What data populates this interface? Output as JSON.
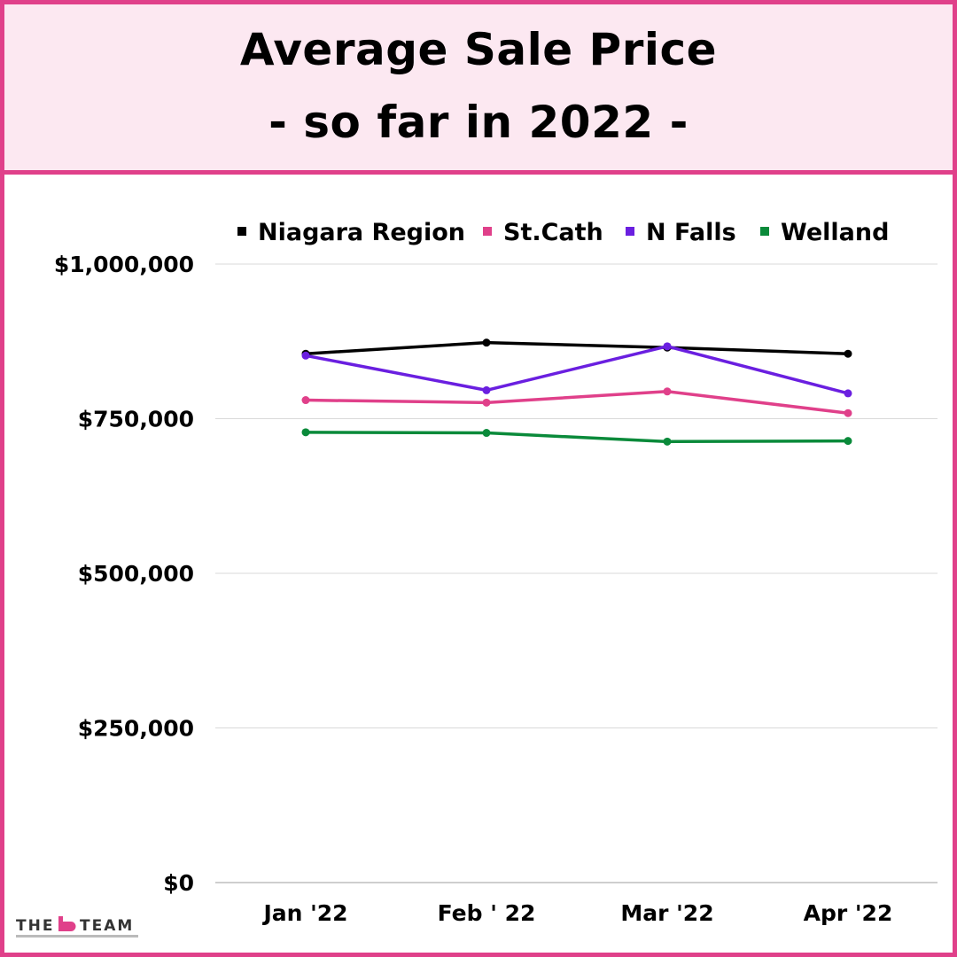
{
  "title": {
    "line1": "Average Sale Price",
    "line2": "- so far in 2022 -"
  },
  "colors": {
    "border": "#e0408a",
    "header_bg": "#fce8f1",
    "Niagara Region": "#000000",
    "St.Cath": "#e0408a",
    "N Falls": "#6a1fe0",
    "Welland": "#0a8a3a"
  },
  "brand": {
    "logo_text_left": "THE",
    "logo_text_right": "TEAM",
    "logo_icon": "b-logo-icon"
  },
  "chart_data": {
    "type": "line",
    "categories": [
      "Jan '22",
      "Feb ' 22",
      "Mar '22",
      "Apr '22"
    ],
    "series": [
      {
        "name": "Niagara Region",
        "values": [
          855000,
          873000,
          865000,
          855000
        ]
      },
      {
        "name": "St.Cath",
        "values": [
          780000,
          776000,
          794000,
          759000
        ]
      },
      {
        "name": "N Falls",
        "values": [
          852000,
          796000,
          867000,
          791000
        ]
      },
      {
        "name": "Welland",
        "values": [
          728000,
          727000,
          713000,
          714000
        ]
      }
    ],
    "y_ticks": [
      0,
      250000,
      500000,
      750000,
      1000000
    ],
    "y_tick_labels": [
      "$0",
      "$250,000",
      "$500,000",
      "$750,000",
      "$1,000,000"
    ],
    "ylim": [
      0,
      1000000
    ],
    "grid": true,
    "legend_position": "top"
  }
}
